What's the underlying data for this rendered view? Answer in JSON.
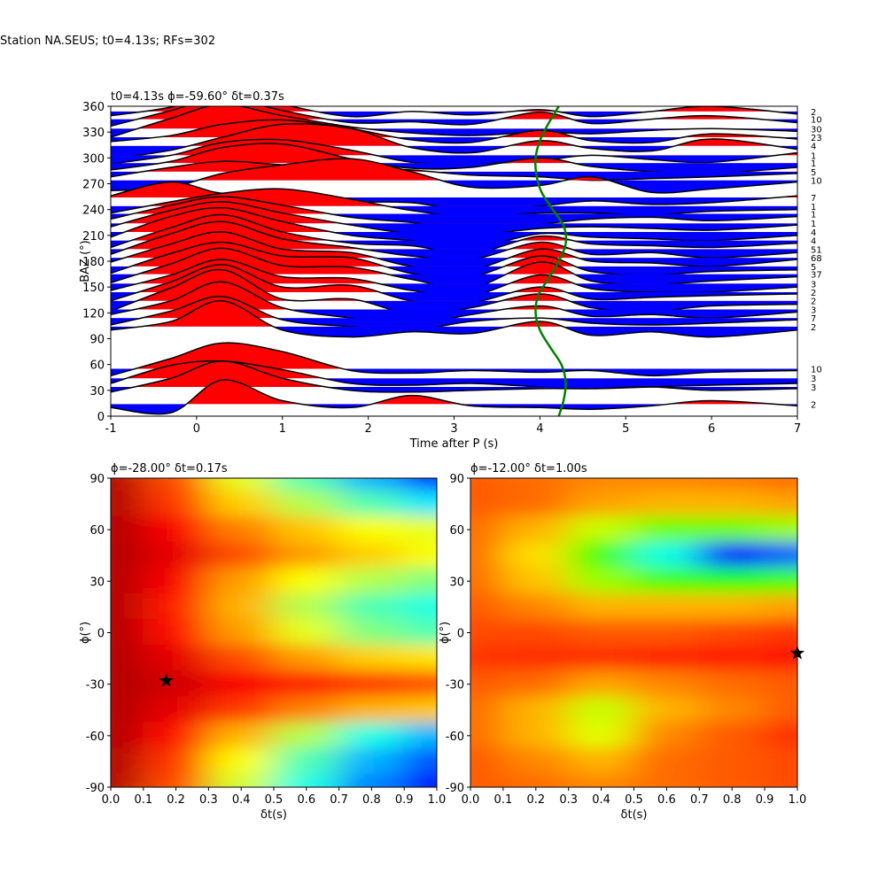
{
  "title": "Station NA.SEUS; t0=4.13s; RFs=302",
  "chart_data": [
    {
      "type": "wiggle",
      "title": "t0=4.13s ϕ=-59.60° δt=0.37s",
      "xlabel": "Time after P (s)",
      "ylabel": "BAZ (°)",
      "xlim": [
        -1,
        7
      ],
      "ylim": [
        0,
        360
      ],
      "xticks": [
        -1,
        0,
        1,
        2,
        3,
        4,
        5,
        6,
        7
      ],
      "yticks": [
        0,
        30,
        60,
        90,
        120,
        150,
        180,
        210,
        240,
        270,
        300,
        330,
        360
      ],
      "positive_color": "#ff0000",
      "negative_color": "#0000ff",
      "line_color": "#000000",
      "x": [
        -1,
        -0.3,
        0.3,
        1,
        1.8,
        2.5,
        3.2,
        4,
        4.6,
        5.3,
        6,
        7
      ],
      "traces": [
        {
          "baz": 354,
          "count": 2,
          "values": [
            -5,
            5,
            22,
            8,
            -6,
            0,
            -4,
            2,
            -6,
            0,
            6,
            -3
          ]
        },
        {
          "baz": 345,
          "count": 10,
          "values": [
            -8,
            10,
            25,
            10,
            -4,
            -3,
            -6,
            8,
            -5,
            0,
            4,
            -4
          ]
        },
        {
          "baz": 334,
          "count": 30,
          "values": [
            -10,
            12,
            28,
            15,
            2,
            -5,
            -8,
            -4,
            -6,
            -2,
            0,
            -3
          ]
        },
        {
          "baz": 324,
          "count": 23,
          "values": [
            -5,
            2,
            15,
            20,
            10,
            -3,
            -6,
            8,
            -4,
            -6,
            4,
            -2
          ]
        },
        {
          "baz": 314,
          "count": 4,
          "values": [
            -15,
            -5,
            10,
            25,
            20,
            -2,
            -8,
            6,
            -3,
            -6,
            8,
            -4
          ]
        },
        {
          "baz": 303,
          "count": 1,
          "values": [
            -10,
            0,
            15,
            18,
            6,
            -8,
            -10,
            -6,
            0,
            -5,
            -8,
            3
          ]
        },
        {
          "baz": 294,
          "count": 1,
          "values": [
            -8,
            2,
            18,
            22,
            5,
            -6,
            -5,
            6,
            -4,
            -10,
            -12,
            -5
          ]
        },
        {
          "baz": 284,
          "count": 5,
          "values": [
            -6,
            5,
            12,
            8,
            4,
            2,
            -4,
            -6,
            -10,
            -8,
            -6,
            -2
          ]
        },
        {
          "baz": 274,
          "count": 10,
          "values": [
            -12,
            -8,
            8,
            18,
            25,
            10,
            -8,
            -6,
            4,
            -14,
            -10,
            -2
          ]
        },
        {
          "baz": 254,
          "count": 7,
          "values": [
            2,
            18,
            5,
            8,
            -4,
            -6,
            -15,
            -10,
            -4,
            -8,
            -6,
            2
          ]
        },
        {
          "baz": 244,
          "count": 1,
          "values": [
            -8,
            5,
            15,
            20,
            8,
            -5,
            -12,
            -8,
            -8,
            -10,
            -6,
            -4
          ]
        },
        {
          "baz": 235,
          "count": 1,
          "values": [
            -6,
            10,
            20,
            10,
            -4,
            -10,
            -18,
            -12,
            -6,
            -4,
            -8,
            -3
          ]
        },
        {
          "baz": 224,
          "count": 1,
          "values": [
            -4,
            15,
            25,
            12,
            -2,
            -12,
            -14,
            -6,
            -4,
            -6,
            -8,
            -2
          ]
        },
        {
          "baz": 214,
          "count": 4,
          "values": [
            -6,
            18,
            28,
            12,
            -4,
            -10,
            -18,
            -2,
            -6,
            -8,
            -10,
            -4
          ]
        },
        {
          "baz": 204,
          "count": 4,
          "values": [
            -8,
            15,
            30,
            10,
            -3,
            -6,
            -15,
            5,
            -4,
            -6,
            -8,
            -3
          ]
        },
        {
          "baz": 194,
          "count": 51,
          "values": [
            -6,
            18,
            32,
            12,
            2,
            -8,
            -12,
            8,
            -6,
            -4,
            -10,
            -4
          ]
        },
        {
          "baz": 184,
          "count": 68,
          "values": [
            -5,
            16,
            30,
            10,
            6,
            -10,
            -14,
            10,
            -4,
            -6,
            -10,
            -2
          ]
        },
        {
          "baz": 174,
          "count": 5,
          "values": [
            -8,
            15,
            28,
            12,
            10,
            -8,
            -12,
            12,
            -6,
            -10,
            -6,
            -4
          ]
        },
        {
          "baz": 165,
          "count": 37,
          "values": [
            -10,
            12,
            30,
            10,
            8,
            -6,
            -16,
            14,
            -8,
            -12,
            -8,
            -3
          ]
        },
        {
          "baz": 154,
          "count": 3,
          "values": [
            -8,
            10,
            28,
            8,
            6,
            -8,
            -14,
            10,
            -6,
            -10,
            -10,
            -4
          ]
        },
        {
          "baz": 144,
          "count": 2,
          "values": [
            -10,
            12,
            32,
            6,
            8,
            -10,
            -12,
            6,
            -8,
            -6,
            -4,
            -2
          ]
        },
        {
          "baz": 134,
          "count": 2,
          "values": [
            -12,
            15,
            36,
            2,
            2,
            -15,
            -8,
            8,
            -8,
            -12,
            -6,
            -4
          ]
        },
        {
          "baz": 124,
          "count": 3,
          "values": [
            -6,
            10,
            32,
            2,
            -10,
            -18,
            -6,
            4,
            -8,
            -6,
            -10,
            -3
          ]
        },
        {
          "baz": 114,
          "count": 7,
          "values": [
            -8,
            8,
            25,
            -2,
            -10,
            -14,
            -4,
            0,
            -6,
            -8,
            -6,
            -2
          ]
        },
        {
          "baz": 104,
          "count": 2,
          "values": [
            -4,
            6,
            30,
            -4,
            -12,
            -6,
            -8,
            6,
            -10,
            -6,
            -12,
            -4
          ]
        },
        {
          "baz": 55,
          "count": 10,
          "values": [
            -8,
            12,
            30,
            20,
            -2,
            -5,
            -2,
            -4,
            -2,
            -8,
            -4,
            -2
          ]
        },
        {
          "baz": 44,
          "count": 3,
          "values": [
            -6,
            15,
            20,
            10,
            -6,
            -8,
            -6,
            -10,
            -12,
            -10,
            -8,
            -6
          ]
        },
        {
          "baz": 34,
          "count": 3,
          "values": [
            -6,
            10,
            30,
            10,
            -4,
            -6,
            -4,
            -2,
            -2,
            0,
            -4,
            -2
          ]
        },
        {
          "baz": 14,
          "count": 2,
          "values": [
            -4,
            -10,
            28,
            4,
            -4,
            10,
            -2,
            -4,
            -6,
            -2,
            4,
            -2
          ]
        }
      ],
      "curve": {
        "color": "#008000",
        "x": [
          4.22,
          4.28,
          4.3,
          4.25,
          4.12,
          4.0,
          3.95,
          3.98,
          4.1,
          4.22,
          4.3,
          4.28,
          4.15,
          4.02,
          3.96,
          3.95,
          4.0,
          4.1,
          4.22
        ],
        "y": [
          0,
          20,
          40,
          60,
          80,
          100,
          120,
          140,
          160,
          180,
          200,
          220,
          240,
          260,
          280,
          300,
          320,
          340,
          360
        ]
      }
    },
    {
      "type": "heatmap",
      "title": "ϕ=-28.00° δt=0.17s",
      "xlabel": "δt(s)",
      "ylabel": "ϕ(°)",
      "xlim": [
        0,
        1
      ],
      "ylim": [
        -90,
        90
      ],
      "xticks": [
        {
          "value": 0,
          "label": "0.0"
        },
        0.1,
        0.2,
        0.3,
        0.4,
        0.5,
        0.6,
        0.7,
        0.8,
        0.9,
        {
          "value": 1,
          "label": "1.0"
        }
      ],
      "yticks": [
        -90,
        -60,
        -30,
        0,
        30,
        60,
        90
      ],
      "colormap": [
        "#800000",
        "#ff0000",
        "#ff8000",
        "#ffff00",
        "#80ff80",
        "#00ffff",
        "#0080ff",
        "#0000ff",
        "#000080"
      ],
      "x": [
        0,
        0.2,
        0.4,
        0.6,
        0.8,
        1
      ],
      "y": [
        90,
        75,
        60,
        45,
        30,
        15,
        0,
        -15,
        -30,
        -45,
        -60,
        -75,
        -90
      ],
      "z": [
        [
          0.05,
          0.2,
          0.4,
          0.55,
          0.7,
          0.85
        ],
        [
          0.05,
          0.18,
          0.33,
          0.45,
          0.55,
          0.65
        ],
        [
          0.05,
          0.12,
          0.25,
          0.32,
          0.38,
          0.4
        ],
        [
          0.05,
          0.1,
          0.2,
          0.28,
          0.33,
          0.38
        ],
        [
          0.05,
          0.12,
          0.28,
          0.38,
          0.45,
          0.5
        ],
        [
          0.05,
          0.15,
          0.3,
          0.45,
          0.55,
          0.6
        ],
        [
          0.05,
          0.14,
          0.28,
          0.4,
          0.5,
          0.55
        ],
        [
          0.05,
          0.1,
          0.2,
          0.28,
          0.33,
          0.35
        ],
        [
          0.05,
          0.08,
          0.12,
          0.15,
          0.18,
          0.2
        ],
        [
          0.05,
          0.1,
          0.18,
          0.25,
          0.3,
          0.32
        ],
        [
          0.05,
          0.14,
          0.3,
          0.45,
          0.6,
          0.7
        ],
        [
          0.05,
          0.18,
          0.38,
          0.55,
          0.7,
          0.8
        ],
        [
          0.05,
          0.2,
          0.42,
          0.6,
          0.75,
          0.88
        ]
      ],
      "marker": {
        "x": 0.17,
        "y": -28,
        "color": "#000000"
      }
    },
    {
      "type": "heatmap",
      "title": "ϕ=-12.00° δt=1.00s",
      "xlabel": "δt(s)",
      "ylabel": "ϕ(°)",
      "xlim": [
        0,
        1
      ],
      "ylim": [
        -90,
        90
      ],
      "xticks": [
        {
          "value": 0,
          "label": "0.0"
        },
        0.1,
        0.2,
        0.3,
        0.4,
        0.5,
        0.6,
        0.7,
        0.8,
        0.9,
        {
          "value": 1,
          "label": "1.0"
        }
      ],
      "yticks": [
        -90,
        -60,
        -30,
        0,
        30,
        60,
        90
      ],
      "colormap": [
        "#ff0000",
        "#ff8000",
        "#ffff00",
        "#80ff00",
        "#00ff00",
        "#00ffff",
        "#0000ff",
        "#ff00ff"
      ],
      "x": [
        0,
        0.2,
        0.4,
        0.6,
        0.8,
        1
      ],
      "y": [
        90,
        75,
        60,
        45,
        30,
        15,
        0,
        -15,
        -30,
        -45,
        -60,
        -75,
        -90
      ],
      "z": [
        [
          0.1,
          0.12,
          0.15,
          0.15,
          0.14,
          0.12
        ],
        [
          0.1,
          0.12,
          0.18,
          0.2,
          0.2,
          0.18
        ],
        [
          0.12,
          0.2,
          0.35,
          0.45,
          0.45,
          0.4
        ],
        [
          0.12,
          0.25,
          0.5,
          0.7,
          0.85,
          0.8
        ],
        [
          0.12,
          0.22,
          0.4,
          0.5,
          0.55,
          0.5
        ],
        [
          0.1,
          0.15,
          0.2,
          0.2,
          0.2,
          0.18
        ],
        [
          0.08,
          0.08,
          0.1,
          0.1,
          0.08,
          0.06
        ],
        [
          0.06,
          0.05,
          0.05,
          0.04,
          0.03,
          0.02
        ],
        [
          0.1,
          0.12,
          0.18,
          0.15,
          0.12,
          0.1
        ],
        [
          0.12,
          0.2,
          0.35,
          0.2,
          0.15,
          0.1
        ],
        [
          0.12,
          0.2,
          0.32,
          0.15,
          0.1,
          0.05
        ],
        [
          0.1,
          0.15,
          0.2,
          0.12,
          0.1,
          0.08
        ],
        [
          0.1,
          0.12,
          0.15,
          0.12,
          0.1,
          0.08
        ]
      ],
      "marker": {
        "x": 1,
        "y": -12,
        "color": "#000000"
      }
    }
  ]
}
